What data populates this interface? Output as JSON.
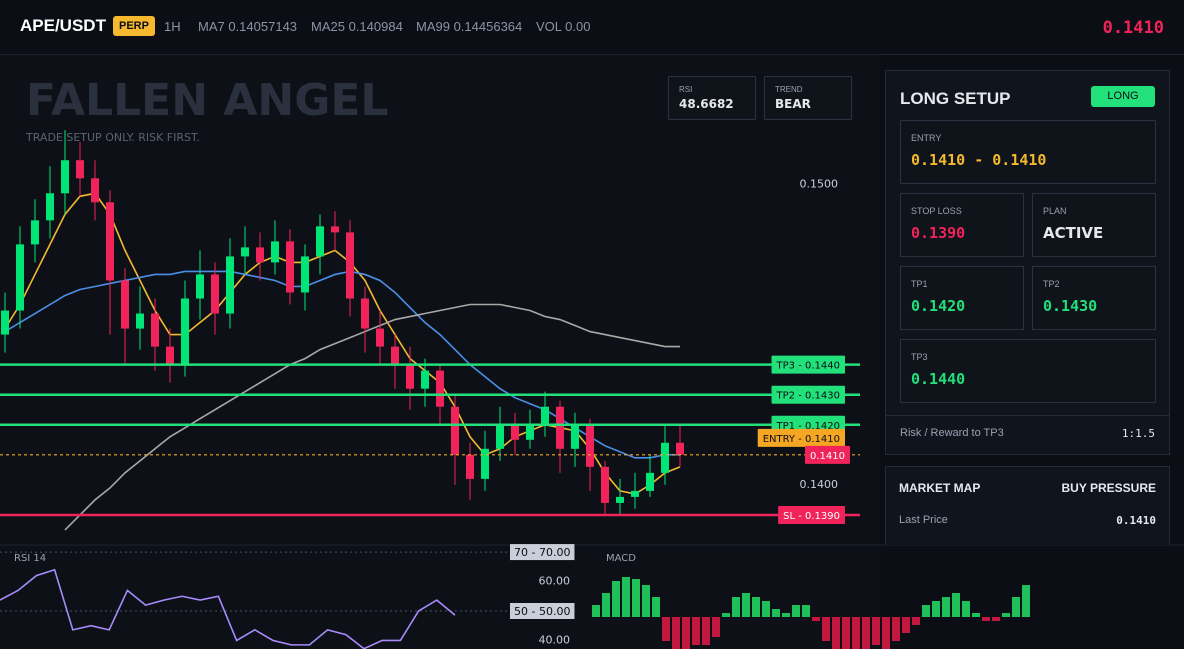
{
  "header": {
    "symbol": "APE/USDT",
    "badge": "PERP",
    "timeframe": "1H",
    "ma7": "MA7 0.14057143",
    "ma25": "MA25 0.140984",
    "ma99": "MA99 0.14456364",
    "vol": "VOL 0.00",
    "price": "0.1410"
  },
  "watermark": {
    "title": "FALLEN ANGEL",
    "subtitle": "TRADE SETUP ONLY. RISK FIRST."
  },
  "stats": {
    "rsi_label": "RSI",
    "rsi": "48.6682",
    "trend_label": "TREND",
    "trend": "BEAR"
  },
  "panel": {
    "title": "LONG SETUP",
    "badge": "LONG",
    "entry_label": "ENTRY",
    "entry": "0.1410 - 0.1410",
    "stop_label": "STOP LOSS",
    "stop": "0.1390",
    "plan_label": "PLAN",
    "plan": "ACTIVE",
    "tp1_label": "TP1",
    "tp1": "0.1420",
    "tp2_label": "TP2",
    "tp2": "0.1430",
    "tp3_label": "TP3",
    "tp3": "0.1440",
    "rr_label": "Risk / Reward to TP3",
    "rr": "1:1.5"
  },
  "market": {
    "title": "MARKET MAP",
    "status": "BUY PRESSURE",
    "last_label": "Last Price",
    "last": "0.1410"
  },
  "chart_data": [
    {
      "type": "candlestick",
      "up_color": "#00e676",
      "down_color": "#f0245a",
      "open": [
        0.145,
        0.1458,
        0.148,
        0.1488,
        0.1497,
        0.1508,
        0.1502,
        0.1494,
        0.1468,
        0.1452,
        0.1457,
        0.1446,
        0.144,
        0.1462,
        0.147,
        0.1457,
        0.1476,
        0.1479,
        0.1474,
        0.1481,
        0.1464,
        0.1476,
        0.1486,
        0.1484,
        0.1462,
        0.1452,
        0.1446,
        0.144,
        0.1432,
        0.1438,
        0.1426,
        0.141,
        0.1402,
        0.1412,
        0.142,
        0.1415,
        0.142,
        0.1426,
        0.1412,
        0.142,
        0.1406,
        0.1394,
        0.1396,
        0.1398,
        0.1404,
        0.1414
      ],
      "high": [
        0.1464,
        0.1486,
        0.1495,
        0.1506,
        0.1518,
        0.1514,
        0.1508,
        0.1498,
        0.1472,
        0.1466,
        0.1462,
        0.1452,
        0.1468,
        0.1478,
        0.1474,
        0.1482,
        0.1486,
        0.1484,
        0.1488,
        0.1485,
        0.148,
        0.149,
        0.1491,
        0.1488,
        0.1466,
        0.1458,
        0.145,
        0.1446,
        0.1442,
        0.144,
        0.143,
        0.1414,
        0.1418,
        0.1426,
        0.1424,
        0.1425,
        0.1431,
        0.1428,
        0.1424,
        0.1422,
        0.1408,
        0.1402,
        0.1404,
        0.141,
        0.142,
        0.142
      ],
      "low": [
        0.1444,
        0.1452,
        0.1474,
        0.1482,
        0.149,
        0.1496,
        0.1488,
        0.145,
        0.144,
        0.1445,
        0.1438,
        0.1434,
        0.1436,
        0.1455,
        0.145,
        0.1452,
        0.147,
        0.1468,
        0.147,
        0.146,
        0.1458,
        0.147,
        0.1478,
        0.1456,
        0.1444,
        0.144,
        0.1432,
        0.1425,
        0.1426,
        0.142,
        0.14,
        0.1395,
        0.1398,
        0.1408,
        0.141,
        0.1412,
        0.1416,
        0.1404,
        0.1406,
        0.1398,
        0.139,
        0.139,
        0.1392,
        0.1396,
        0.14,
        0.1406
      ],
      "close": [
        0.1458,
        0.148,
        0.1488,
        0.1497,
        0.1508,
        0.1502,
        0.1494,
        0.1468,
        0.1452,
        0.1457,
        0.1446,
        0.144,
        0.1462,
        0.147,
        0.1457,
        0.1476,
        0.1479,
        0.1474,
        0.1481,
        0.1464,
        0.1476,
        0.1486,
        0.1484,
        0.1462,
        0.1452,
        0.1446,
        0.144,
        0.1432,
        0.1438,
        0.1426,
        0.141,
        0.1402,
        0.1412,
        0.142,
        0.1415,
        0.142,
        0.1426,
        0.1412,
        0.142,
        0.1406,
        0.1394,
        0.1396,
        0.1398,
        0.1404,
        0.1414,
        0.141
      ],
      "series": [
        {
          "color": "#f5b82e",
          "values": [
            0.1452,
            0.146,
            0.147,
            0.148,
            0.149,
            0.1496,
            0.1497,
            0.149,
            0.1478,
            0.1468,
            0.1458,
            0.145,
            0.145,
            0.1454,
            0.1458,
            0.1464,
            0.147,
            0.1474,
            0.1476,
            0.1474,
            0.1474,
            0.1476,
            0.1478,
            0.1474,
            0.1468,
            0.1458,
            0.145,
            0.1442,
            0.1438,
            0.1434,
            0.1426,
            0.1416,
            0.141,
            0.1412,
            0.1416,
            0.1418,
            0.142,
            0.1419,
            0.1418,
            0.1412,
            0.1404,
            0.1398,
            0.1397,
            0.14,
            0.1404,
            0.1406
          ]
        },
        {
          "color": "#4a8fe7",
          "values": [
            0.1451,
            0.1454,
            0.1457,
            0.146,
            0.1463,
            0.1465,
            0.1466,
            0.1467,
            0.1468,
            0.1469,
            0.147,
            0.147,
            0.1471,
            0.1471,
            0.1471,
            0.1471,
            0.147,
            0.1469,
            0.1468,
            0.1466,
            0.1466,
            0.1468,
            0.147,
            0.1471,
            0.147,
            0.1468,
            0.1464,
            0.1459,
            0.1454,
            0.145,
            0.1445,
            0.144,
            0.1436,
            0.1432,
            0.1429,
            0.1427,
            0.1425,
            0.1422,
            0.1419,
            0.1416,
            0.1413,
            0.1411,
            0.1409,
            0.1409,
            0.141,
            0.141
          ]
        },
        {
          "color": "#a8a8a8",
          "values": [
            null,
            null,
            null,
            null,
            0.1385,
            0.139,
            0.1395,
            0.1399,
            0.1404,
            0.1408,
            0.1412,
            0.1416,
            0.1419,
            0.1422,
            0.1425,
            0.1428,
            0.1431,
            0.1434,
            0.1437,
            0.144,
            0.1442,
            0.1445,
            0.1447,
            0.1449,
            0.1451,
            0.1453,
            0.1455,
            0.1456,
            0.1457,
            0.1458,
            0.1459,
            0.146,
            0.146,
            0.146,
            0.1459,
            0.1458,
            0.1456,
            0.1455,
            0.1453,
            0.1451,
            0.145,
            0.1449,
            0.1448,
            0.1447,
            0.1446,
            0.1446
          ]
        }
      ],
      "ylim": [
        0.138,
        0.1543
      ],
      "yticks": [
        {
          "value": 0.15,
          "label": "0.1500"
        },
        {
          "value": 0.14,
          "label": "0.1400"
        }
      ],
      "levels": [
        {
          "value": 0.144,
          "label": "TP3 - 0.1440",
          "color": "#22e07a",
          "text_color": "#0b0e14"
        },
        {
          "value": 0.143,
          "label": "TP2 - 0.1430",
          "color": "#22e07a",
          "text_color": "#0b0e14"
        },
        {
          "value": 0.142,
          "label": "TP1 - 0.1420",
          "color": "#22e07a",
          "text_color": "#0b0e14"
        },
        {
          "value": 0.141,
          "label": "ENTRY - 0.1410",
          "color": "#f5a623",
          "text_color": "#0b0e14",
          "dashed": true
        },
        {
          "value": 0.139,
          "label": "SL - 0.1390",
          "color": "#f0245a",
          "text_color": "#ffffff"
        }
      ],
      "last": {
        "value": 0.141,
        "label": "0.1410",
        "color": "#f0245a",
        "text_color": "#ffffff"
      }
    },
    {
      "type": "line",
      "title": "RSI 14",
      "color": "#a78bfa",
      "values": [
        53.7,
        57,
        62,
        64,
        43.6,
        45,
        43.6,
        57,
        52,
        53.7,
        55,
        53.7,
        55,
        40,
        43.6,
        40,
        38.5,
        38.5,
        43.6,
        42,
        37.2,
        40,
        40,
        50,
        53.7,
        48.6
      ],
      "ylim": [
        37.1,
        72.4
      ],
      "yticks": [
        {
          "value": 60,
          "label": "60.00"
        },
        {
          "value": 40,
          "label": "40.00"
        }
      ],
      "levels": [
        {
          "value": 70,
          "label": "70 - 70.00"
        },
        {
          "value": 50,
          "label": "50 - 50.00"
        }
      ]
    },
    {
      "type": "bar",
      "title": "MACD",
      "up_color": "#1fbf5a",
      "down_color": "#c2183f",
      "values": [
        0.3,
        0.6,
        0.9,
        1.0,
        0.95,
        0.8,
        0.5,
        -0.6,
        -0.8,
        -0.8,
        -0.7,
        -0.7,
        -0.5,
        0.1,
        0.5,
        0.6,
        0.5,
        0.4,
        0.2,
        0.1,
        0.3,
        0.3,
        -0.1,
        -0.6,
        -0.8,
        -0.8,
        -0.8,
        -0.8,
        -0.7,
        -0.8,
        -0.6,
        -0.4,
        -0.2,
        0.3,
        0.4,
        0.5,
        0.6,
        0.4,
        0.1,
        -0.1,
        -0.1,
        0.1,
        0.5,
        0.8
      ],
      "ylim": [
        -0.8,
        1.8
      ]
    }
  ]
}
